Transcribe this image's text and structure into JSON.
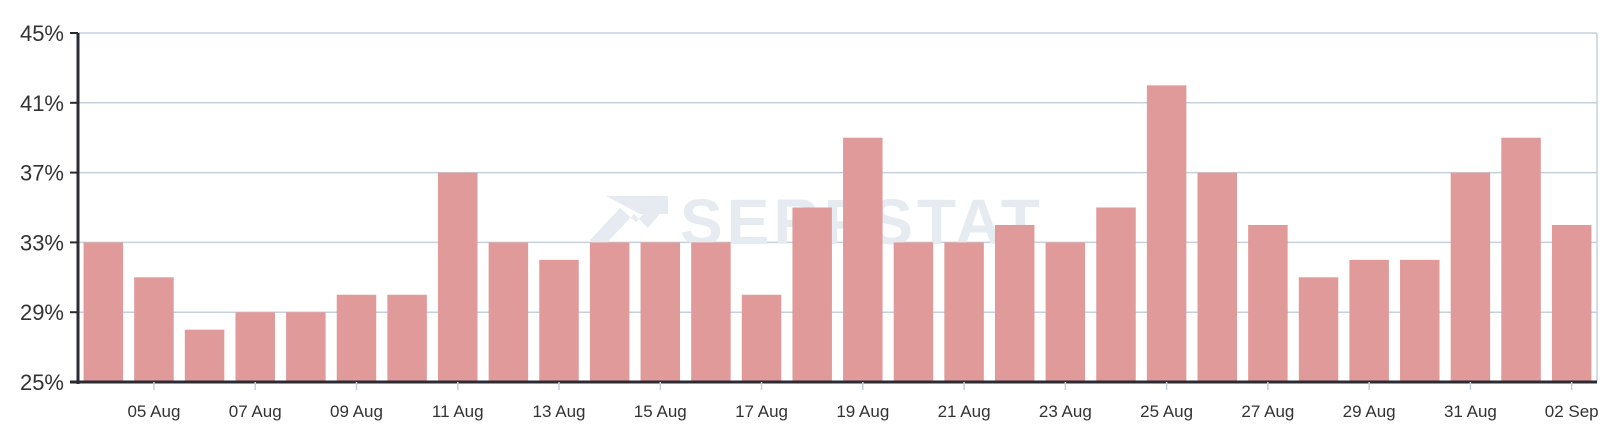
{
  "watermark": "SERPSTAT",
  "colors": {
    "bar": "#e09a9a",
    "grid": "#c5d0de",
    "axis": "#2b2b33",
    "watermark": "#e6ebf2"
  },
  "chart_data": {
    "type": "bar",
    "categories": [
      "04 Aug",
      "05 Aug",
      "06 Aug",
      "07 Aug",
      "08 Aug",
      "09 Aug",
      "10 Aug",
      "11 Aug",
      "12 Aug",
      "13 Aug",
      "14 Aug",
      "15 Aug",
      "16 Aug",
      "17 Aug",
      "18 Aug",
      "19 Aug",
      "20 Aug",
      "21 Aug",
      "22 Aug",
      "23 Aug",
      "24 Aug",
      "25 Aug",
      "26 Aug",
      "27 Aug",
      "28 Aug",
      "29 Aug",
      "30 Aug",
      "31 Aug",
      "01 Sep",
      "02 Sep"
    ],
    "values": [
      33,
      31,
      28,
      29,
      29,
      30,
      30,
      37,
      33,
      32,
      33,
      33,
      33,
      30,
      35,
      39,
      33,
      33,
      34,
      33,
      35,
      42,
      37,
      34,
      31,
      32,
      32,
      37,
      39,
      34
    ],
    "xtick_labels": [
      "05 Aug",
      "07 Aug",
      "09 Aug",
      "11 Aug",
      "13 Aug",
      "15 Aug",
      "17 Aug",
      "19 Aug",
      "21 Aug",
      "23 Aug",
      "25 Aug",
      "27 Aug",
      "29 Aug",
      "31 Aug",
      "02 Sep"
    ],
    "ytick_labels": [
      "25%",
      "29%",
      "33%",
      "37%",
      "41%",
      "45%"
    ],
    "yticks": [
      25,
      29,
      33,
      37,
      41,
      45
    ],
    "ylim": [
      25,
      45
    ],
    "title": "",
    "xlabel": "",
    "ylabel": "",
    "grid": true,
    "legend": "none"
  }
}
